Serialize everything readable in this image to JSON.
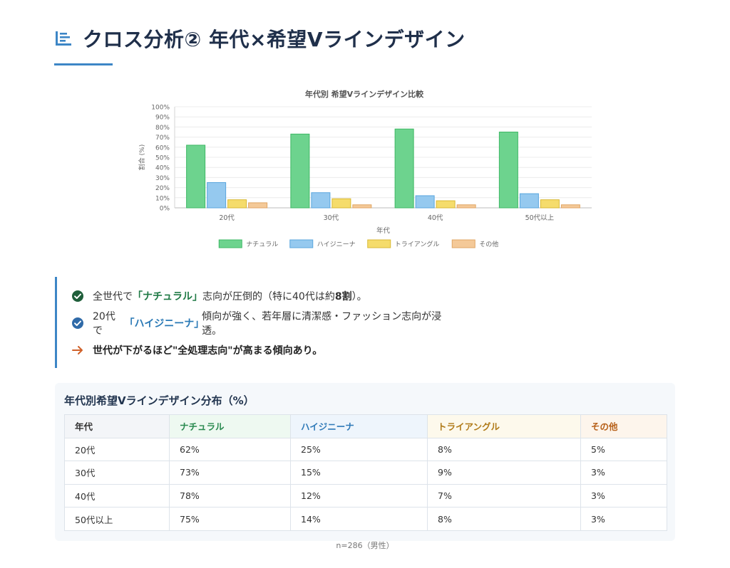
{
  "title": "クロス分析② 年代×希望Vラインデザイン",
  "colors": {
    "accent": "#3d86c6",
    "title": "#1f2f4a",
    "natural": "#6dd38e",
    "hygienic": "#95c9ef",
    "triangle": "#f5dc6b",
    "other": "#f4c998"
  },
  "chart_data": {
    "type": "bar",
    "title": "年代別 希望Vラインデザイン比較",
    "xlabel": "年代",
    "ylabel": "割合 (%)",
    "ylim": [
      0,
      100
    ],
    "yticks": [
      "0%",
      "10%",
      "20%",
      "30%",
      "40%",
      "50%",
      "60%",
      "70%",
      "80%",
      "90%",
      "100%"
    ],
    "categories": [
      "20代",
      "30代",
      "40代",
      "50代以上"
    ],
    "series": [
      {
        "name": "ナチュラル",
        "values": [
          62,
          73,
          78,
          75
        ],
        "color": "#6dd38e",
        "border": "#3fb865"
      },
      {
        "name": "ハイジニーナ",
        "values": [
          25,
          15,
          12,
          14
        ],
        "color": "#95c9ef",
        "border": "#5aa6de"
      },
      {
        "name": "トライアングル",
        "values": [
          8,
          9,
          7,
          8
        ],
        "color": "#f5dc6b",
        "border": "#d9b934"
      },
      {
        "name": "その他",
        "values": [
          5,
          3,
          3,
          3
        ],
        "color": "#f4c998",
        "border": "#e0a563"
      }
    ],
    "legend_position": "bottom"
  },
  "points": [
    {
      "pre": "全世代で",
      "kw": "「ナチュラル」",
      "post1": "志向が圧倒的（特に40代は約",
      "strong": "8割",
      "post2": "）。"
    },
    {
      "pre": "20代で",
      "kw": "「ハイジニーナ」",
      "post": "傾向が強く、若年層に清潔感・ファッション志向が浸透。"
    },
    {
      "text": "世代が下がるほど\"全処理志向\"が高まる傾向あり。"
    }
  ],
  "table": {
    "title": "年代別希望Vラインデザイン分布（%）",
    "headers": [
      "年代",
      "ナチュラル",
      "ハイジニーナ",
      "トライアングル",
      "その他"
    ],
    "rows": [
      [
        "20代",
        "62%",
        "25%",
        "8%",
        "5%"
      ],
      [
        "30代",
        "73%",
        "15%",
        "9%",
        "3%"
      ],
      [
        "40代",
        "78%",
        "12%",
        "7%",
        "3%"
      ],
      [
        "50代以上",
        "75%",
        "14%",
        "8%",
        "3%"
      ]
    ]
  },
  "note": "n=286（男性）"
}
